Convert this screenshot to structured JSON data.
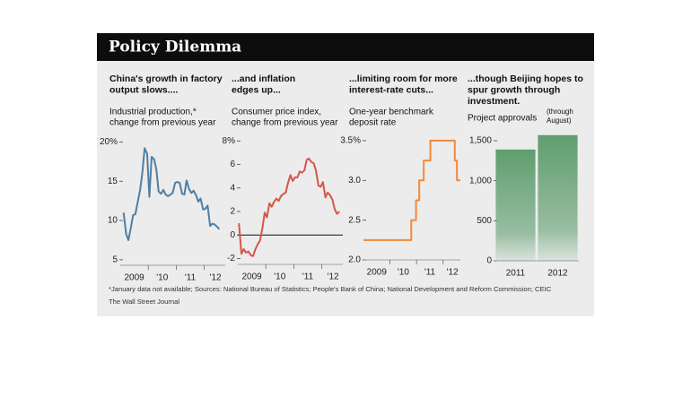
{
  "header": {
    "title": "Policy Dilemma"
  },
  "chart_data": [
    {
      "type": "line",
      "title_lines": [
        "China's growth in factory",
        "output slows...."
      ],
      "subtitle_lines": [
        "Industrial production,*",
        "change from previous year"
      ],
      "x": [
        2009.12,
        2009.21,
        2009.29,
        2009.37,
        2009.46,
        2009.54,
        2009.62,
        2009.71,
        2009.79,
        2009.87,
        2009.96,
        2010.04,
        2010.12,
        2010.21,
        2010.29,
        2010.37,
        2010.46,
        2010.54,
        2010.62,
        2010.71,
        2010.79,
        2010.87,
        2010.96,
        2011.04,
        2011.12,
        2011.21,
        2011.29,
        2011.37,
        2011.46,
        2011.54,
        2011.62,
        2011.71,
        2011.79,
        2011.87,
        2011.96,
        2012.04,
        2012.12,
        2012.21,
        2012.29,
        2012.37,
        2012.46,
        2012.54
      ],
      "values": [
        11,
        8.3,
        7.5,
        8.9,
        10.7,
        10.8,
        12.3,
        13.9,
        16.1,
        19.2,
        18.5,
        13,
        18.1,
        17.8,
        16.5,
        13.7,
        13.4,
        13.9,
        13.3,
        13.1,
        13.3,
        13.5,
        14.8,
        14.9,
        14.8,
        13.4,
        13.3,
        15.1,
        14,
        13.5,
        13.8,
        13.2,
        12.4,
        12.8,
        11.4,
        11.5,
        11.9,
        9.3,
        9.6,
        9.5,
        9.2,
        8.9
      ],
      "color": "#4f7fa3",
      "xlim": [
        2009,
        2012.75
      ],
      "xticks": [
        {
          "value": 2009.5,
          "label": "2009"
        },
        {
          "value": 2010.5,
          "label": "'10"
        },
        {
          "value": 2011.5,
          "label": "'11"
        },
        {
          "value": 2012.4,
          "label": "'12"
        }
      ],
      "xminor": [
        2010,
        2011,
        2012
      ],
      "ylim": [
        4.3,
        20.5
      ],
      "yticks": [
        {
          "value": 20,
          "label": "20%"
        },
        15,
        10,
        5
      ]
    },
    {
      "type": "line",
      "title_lines": [
        "...and inflation",
        "edges up..."
      ],
      "subtitle_lines": [
        "Consumer price index,",
        "change from previous year"
      ],
      "x": [
        2009.04,
        2009.13,
        2009.21,
        2009.29,
        2009.38,
        2009.46,
        2009.54,
        2009.63,
        2009.71,
        2009.79,
        2009.88,
        2009.96,
        2010.04,
        2010.13,
        2010.21,
        2010.29,
        2010.38,
        2010.46,
        2010.54,
        2010.63,
        2010.71,
        2010.79,
        2010.88,
        2010.96,
        2011.04,
        2011.13,
        2011.21,
        2011.29,
        2011.38,
        2011.46,
        2011.54,
        2011.63,
        2011.71,
        2011.79,
        2011.88,
        2011.96,
        2012.04,
        2012.13,
        2012.21,
        2012.29,
        2012.38,
        2012.46,
        2012.54,
        2012.63
      ],
      "values": [
        1,
        -1.6,
        -1.2,
        -1.5,
        -1.4,
        -1.7,
        -1.8,
        -1.2,
        -0.8,
        -0.5,
        0.6,
        1.9,
        1.5,
        2.7,
        2.4,
        2.8,
        3.1,
        2.9,
        3.3,
        3.5,
        3.6,
        4.4,
        5.1,
        4.6,
        4.9,
        4.9,
        5.4,
        5.3,
        5.5,
        6.4,
        6.5,
        6.2,
        6.1,
        5.5,
        4.2,
        4.1,
        4.5,
        3.2,
        3.6,
        3.4,
        3,
        2.2,
        1.8,
        2
      ],
      "color": "#d4574a",
      "xlim": [
        2009,
        2012.75
      ],
      "xticks": [
        {
          "value": 2009.5,
          "label": "2009"
        },
        {
          "value": 2010.5,
          "label": "'10"
        },
        {
          "value": 2011.5,
          "label": "'11"
        },
        {
          "value": 2012.4,
          "label": "'12"
        }
      ],
      "xminor": [
        2010,
        2011,
        2012
      ],
      "ylim": [
        -2.5,
        8.4
      ],
      "yticks": [
        {
          "value": 8,
          "label": "8%"
        },
        6,
        4,
        2,
        0,
        -2
      ],
      "zero_line": true
    },
    {
      "type": "line",
      "step": "post",
      "title_lines": [
        "...limiting room for more",
        "interest-rate cuts..."
      ],
      "subtitle_lines": [
        "One-year benchmark",
        "deposit rate"
      ],
      "x": [
        2009,
        2010.8,
        2010.98,
        2011.1,
        2011.27,
        2011.52,
        2012.44,
        2012.52
      ],
      "values": [
        2.25,
        2.5,
        2.75,
        3,
        3.25,
        3.5,
        3.25,
        3
      ],
      "color": "#f28a3c",
      "xlim": [
        2009,
        2012.65
      ],
      "xticks": [
        {
          "value": 2009.5,
          "label": "2009"
        },
        {
          "value": 2010.5,
          "label": "'10"
        },
        {
          "value": 2011.5,
          "label": "'11"
        },
        {
          "value": 2012.35,
          "label": "'12"
        }
      ],
      "xminor": [
        2010,
        2011,
        2012
      ],
      "ylim": [
        2,
        3.55
      ],
      "yticks": [
        {
          "value": 3.5,
          "label": "3.5%"
        },
        {
          "value": 3,
          "label": "3.0"
        },
        2.5,
        {
          "value": 2,
          "label": "2.0"
        }
      ]
    },
    {
      "type": "bar",
      "title_lines": [
        "...though Beijing hopes to",
        "spur growth through",
        "investment."
      ],
      "subtitle_lines": [
        "Project approvals"
      ],
      "annotation_lines": [
        "(through",
        "August)"
      ],
      "categories": [
        "2011",
        "2012"
      ],
      "values": [
        1390,
        1570
      ],
      "color": "#5f9e6e",
      "ylim": [
        0,
        1650
      ],
      "yticks": [
        {
          "value": 1500,
          "label": "1,500"
        },
        {
          "value": 1000,
          "label": "1,000"
        },
        500,
        0
      ]
    }
  ],
  "footnote": "*January data not available; Sources: National Bureau of Statistics; People's Bank of China; National Development and Reform Commission; CEIC",
  "source": "The Wall Street Journal"
}
